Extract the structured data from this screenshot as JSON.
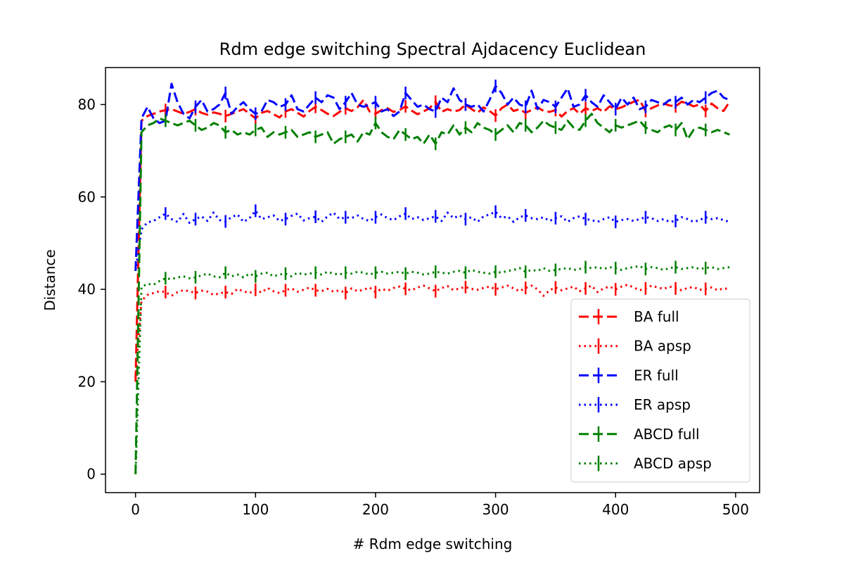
{
  "chart_data": {
    "type": "line",
    "title": "Rdm edge switching Spectral Ajdacency Euclidean",
    "xlabel": "# Rdm edge switching",
    "ylabel": "Distance",
    "xlim": [
      -25,
      520
    ],
    "ylim": [
      -4,
      88
    ],
    "xticks": [
      0,
      100,
      200,
      300,
      400,
      500
    ],
    "yticks": [
      0,
      20,
      40,
      60,
      80
    ],
    "grid": false,
    "legend_position": "lower-right",
    "x": [
      0,
      5,
      10,
      15,
      20,
      25,
      30,
      35,
      40,
      45,
      50,
      55,
      60,
      65,
      70,
      75,
      80,
      85,
      90,
      95,
      100,
      105,
      110,
      115,
      120,
      125,
      130,
      135,
      140,
      145,
      150,
      155,
      160,
      165,
      170,
      175,
      180,
      185,
      190,
      195,
      200,
      205,
      210,
      215,
      220,
      225,
      230,
      235,
      240,
      245,
      250,
      255,
      260,
      265,
      270,
      275,
      280,
      285,
      290,
      295,
      300,
      305,
      310,
      315,
      320,
      325,
      330,
      335,
      340,
      345,
      350,
      355,
      360,
      365,
      370,
      375,
      380,
      385,
      390,
      395,
      400,
      405,
      410,
      415,
      420,
      425,
      430,
      435,
      440,
      445,
      450,
      455,
      460,
      465,
      470,
      475,
      480,
      485,
      490,
      495
    ],
    "series": [
      {
        "name": "BA full",
        "color": "#ff0000",
        "dash": "dashed",
        "values": [
          20,
          76.5,
          77.5,
          78,
          78.5,
          78.8,
          79,
          78.5,
          78,
          78.4,
          79,
          78.2,
          77.8,
          78.3,
          78,
          77.5,
          78,
          78.5,
          79,
          78,
          77,
          78.2,
          78.6,
          77.9,
          77.2,
          78.5,
          79,
          78.2,
          77.4,
          78.6,
          79.5,
          78.8,
          78,
          77.5,
          78.4,
          79.2,
          78.6,
          79.4,
          81,
          78.5,
          78,
          78.8,
          79.2,
          78.4,
          78.8,
          79.6,
          78.7,
          77.9,
          78.5,
          79.2,
          80.6,
          78.4,
          79,
          78.5,
          78.8,
          80,
          79,
          78.2,
          79.4,
          78.6,
          77.6,
          79.2,
          80,
          78.6,
          79,
          78.2,
          78.8,
          79.4,
          78.6,
          78.4,
          78.8,
          77.4,
          78.6,
          79.2,
          78,
          79.2,
          78.6,
          79.2,
          78.4,
          79.6,
          79,
          79.4,
          80,
          80.6,
          81,
          78.6,
          79.2,
          79.8,
          80.2,
          79.8,
          79.6,
          80.6,
          80.2,
          79.6,
          80,
          78.6,
          80.2,
          79.2,
          78.6,
          80.6
        ]
      },
      {
        "name": "BA apsp",
        "color": "#ff0000",
        "dash": "dotted",
        "values": [
          21,
          37.5,
          38.8,
          39.2,
          39.6,
          39.4,
          38.6,
          39.4,
          39.8,
          39.6,
          39.2,
          39.7,
          39.5,
          38.8,
          39.1,
          39.4,
          39,
          40.1,
          39.6,
          39.2,
          39.9,
          39.3,
          40.3,
          39.6,
          39.2,
          39.8,
          40.2,
          39.5,
          39.9,
          40.4,
          39.8,
          39.6,
          40.1,
          39.5,
          39.8,
          39.2,
          40.2,
          39.6,
          39.9,
          40.4,
          39.4,
          40.1,
          39.7,
          40.3,
          40.6,
          40.1,
          39.8,
          40.4,
          40.8,
          40.2,
          39.6,
          40.3,
          40.7,
          39.8,
          40.2,
          40.5,
          40.1,
          39.9,
          40.3,
          40.6,
          40,
          40.4,
          40.8,
          40.2,
          39.6,
          40.3,
          40.8,
          40,
          38.6,
          39.8,
          40.4,
          39.8,
          40.2,
          40.6,
          39.6,
          40.2,
          40.8,
          39.4,
          40.2,
          40.6,
          40,
          40.6,
          41,
          40.4,
          39.8,
          40.2,
          40.8,
          40.4,
          40.1,
          40.6,
          40.2,
          39.8,
          40.3,
          40.5,
          39.9,
          40.1,
          40.4,
          39.8,
          40.2,
          40.1
        ]
      },
      {
        "name": "ER full",
        "color": "#0000ff",
        "dash": "dashed",
        "values": [
          44,
          77,
          79.5,
          77,
          76,
          76.5,
          84.5,
          80.5,
          78,
          77,
          79.5,
          81,
          78.5,
          79,
          80,
          82.5,
          78,
          79.5,
          80.5,
          79,
          78,
          78.5,
          81,
          80.5,
          79.5,
          80,
          82,
          79,
          78.5,
          80,
          81.5,
          80.5,
          82,
          81.5,
          79,
          80.5,
          82.5,
          80,
          79.5,
          80,
          80.5,
          78.5,
          79,
          77.5,
          78.5,
          82.5,
          81,
          79.5,
          80,
          79,
          78.5,
          81.5,
          80.5,
          83.5,
          81,
          80,
          79.5,
          80,
          78.5,
          81,
          84,
          82.5,
          80,
          81.5,
          80,
          79.5,
          83,
          79,
          81,
          80.5,
          79.5,
          81.5,
          83.5,
          79.5,
          80,
          82,
          80.5,
          79.5,
          82,
          80.5,
          79,
          81.5,
          80,
          81.5,
          79,
          79.5,
          81,
          80.5,
          80,
          81,
          80.5,
          81.5,
          80,
          81,
          80.5,
          81.5,
          82.5,
          83,
          81.5,
          81
        ]
      },
      {
        "name": "ER apsp",
        "color": "#0000ff",
        "dash": "dotted",
        "values": [
          44,
          53,
          54.5,
          54.8,
          55.6,
          56.4,
          55.2,
          54.6,
          56.3,
          54.4,
          55.2,
          55.8,
          54.8,
          56.6,
          55,
          54.7,
          55.6,
          56.2,
          54.6,
          55.4,
          57,
          55.2,
          55.6,
          56,
          54.8,
          55.2,
          55.9,
          56.4,
          54.9,
          55.4,
          55.7,
          54.6,
          55.8,
          56.6,
          55.2,
          55.6,
          55.4,
          56,
          55.2,
          54.8,
          55.6,
          56.2,
          55.4,
          55,
          55.8,
          56.4,
          55.2,
          55.6,
          55,
          55.4,
          55.8,
          54.8,
          56.6,
          55.4,
          56,
          55.2,
          55.6,
          54.6,
          55.8,
          56.2,
          56.8,
          55.4,
          55.8,
          54.6,
          55.6,
          56,
          55.4,
          55.2,
          55.6,
          54.8,
          55.4,
          55.8,
          54.6,
          55.4,
          55.8,
          55.2,
          55,
          54.6,
          55.2,
          55.6,
          54.6,
          55,
          55.2,
          54.8,
          55.2,
          55.6,
          55.4,
          54.8,
          55.2,
          54.6,
          54.8,
          55.6,
          55.2,
          54.6,
          55,
          55.6,
          55.2,
          55.4,
          55,
          54.6
        ]
      },
      {
        "name": "ABCD full",
        "color": "#008000",
        "dash": "dashed",
        "values": [
          0,
          74,
          75.5,
          76,
          77,
          76.5,
          76,
          75.5,
          76,
          76.5,
          75.5,
          74.5,
          75,
          76,
          75.5,
          74,
          74.5,
          73.5,
          74,
          73.5,
          74.5,
          75,
          73,
          74,
          73.5,
          74,
          74.5,
          73,
          73.5,
          74,
          73,
          73.5,
          74,
          71.5,
          72.5,
          73,
          73.5,
          72,
          74,
          73.5,
          76,
          74,
          73,
          72.5,
          74.5,
          73.5,
          72.5,
          73,
          71.5,
          73.5,
          71.5,
          74,
          73.5,
          75.5,
          73.5,
          75,
          74,
          76,
          75,
          74.5,
          73.5,
          74.5,
          75.5,
          74,
          76,
          75.5,
          74,
          75,
          76.5,
          75.5,
          75,
          74.5,
          76.5,
          75,
          74.5,
          76.5,
          78,
          76,
          75,
          74,
          75.5,
          75,
          75.5,
          76,
          76.5,
          75,
          74.5,
          74,
          75,
          75.5,
          74.5,
          76,
          72.5,
          74.5,
          75,
          74.5,
          74,
          74.5,
          74,
          73.5
        ]
      },
      {
        "name": "ABCD apsp",
        "color": "#008000",
        "dash": "dotted",
        "values": [
          0,
          40.5,
          41.2,
          41,
          41.8,
          42.4,
          42.2,
          42.6,
          42.8,
          42.4,
          42.6,
          43,
          43.4,
          42.8,
          42.6,
          43.6,
          42.8,
          43.2,
          42.6,
          43.4,
          42.8,
          43.4,
          43.6,
          42.8,
          43.2,
          43.4,
          42.8,
          43.6,
          43.2,
          43.4,
          43.6,
          43.2,
          43.8,
          43.4,
          43.2,
          43.6,
          43.4,
          43.8,
          43.6,
          43.2,
          43.6,
          43.8,
          43.4,
          43.6,
          43.8,
          43.4,
          43.8,
          43.6,
          43.2,
          43.4,
          43.8,
          43.6,
          43.4,
          43.8,
          44,
          43.6,
          44.2,
          43.8,
          43.6,
          43.4,
          43.8,
          43.6,
          44,
          44.2,
          44.6,
          43.8,
          44.2,
          44,
          44.6,
          44,
          44.2,
          44.4,
          44.6,
          44.2,
          44.4,
          44.8,
          44.6,
          44.8,
          44.4,
          44.8,
          44.6,
          44.2,
          44.6,
          44.8,
          45,
          44.4,
          44.8,
          44.6,
          44.2,
          44.6,
          44.8,
          44.4,
          44.6,
          44.8,
          44.4,
          44.6,
          44.8,
          44.4,
          44.6,
          44.8
        ]
      }
    ]
  }
}
